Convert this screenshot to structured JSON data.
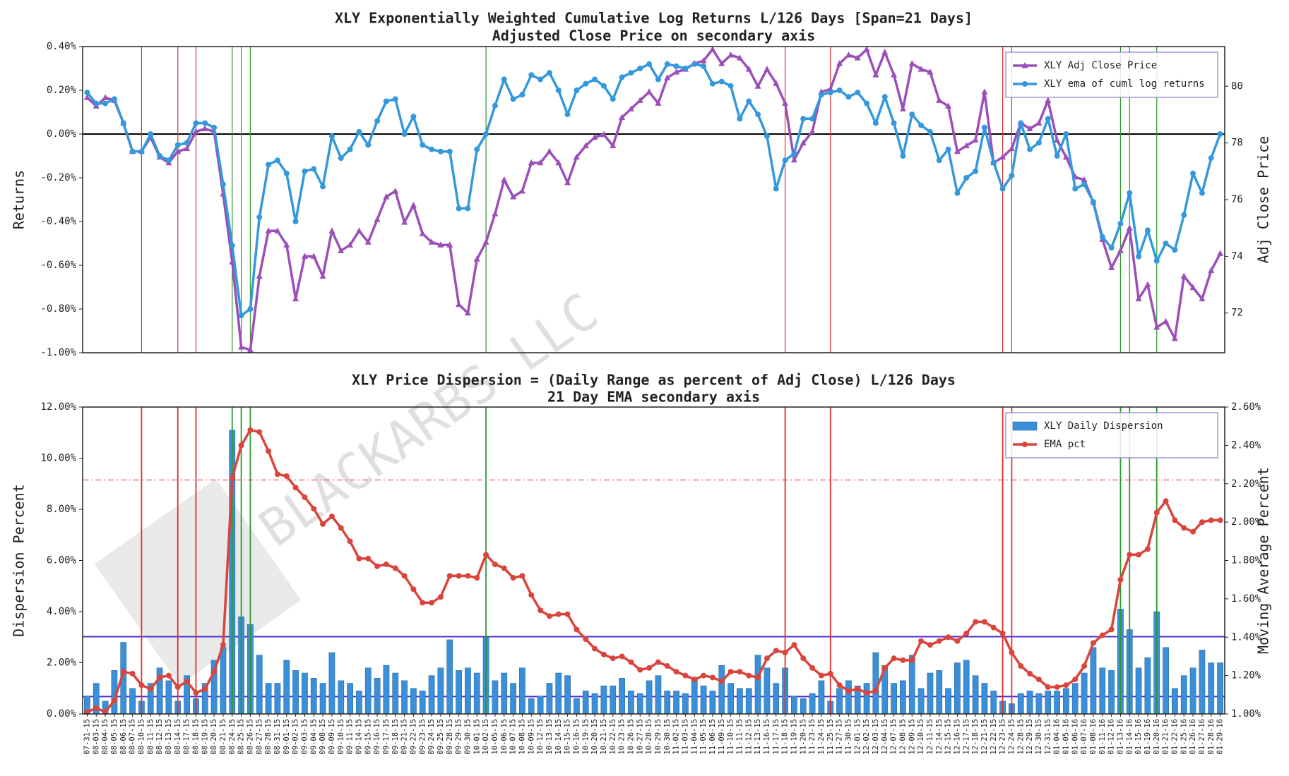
{
  "watermark": "BLACKARBS LLC",
  "chart_data": [
    {
      "type": "line",
      "title": "XLY Exponentially Weighted Cumulative Log Returns L/126 Days [Span=21 Days]",
      "subtitle": "Adjusted Close Price on secondary axis",
      "ylabel": "Returns",
      "y2label": "Adj Close Price",
      "ylim": [
        -1,
        0.4
      ],
      "yticks": [
        {
          "value": -1,
          "label": "-1.00%"
        },
        {
          "value": -0.8,
          "label": "-0.80%"
        },
        {
          "value": -0.6,
          "label": "-0.60%"
        },
        {
          "value": -0.4,
          "label": "-0.40%"
        },
        {
          "value": -0.2,
          "label": "-0.20%"
        },
        {
          "value": 0,
          "label": "0.00%"
        },
        {
          "value": 0.2,
          "label": "0.20%"
        },
        {
          "value": 0.4,
          "label": "0.40%"
        }
      ],
      "y2lim": [
        70.6,
        81.4
      ],
      "y2ticks": [
        72,
        74,
        76,
        78,
        80
      ],
      "legend": "upper right",
      "hlines": [
        {
          "value": 0,
          "color": "#000000"
        }
      ],
      "red_lines": [
        "08-10-15",
        "08-14-15",
        "08-18-15",
        "11-18-15",
        "11-25-15",
        "12-23-15",
        "12-24-15"
      ],
      "green_lines": [
        "08-24-15",
        "08-25-15",
        "08-26-15",
        "10-02-15",
        "01-13-16",
        "01-14-16",
        "01-20-16"
      ],
      "series": [
        {
          "name": "XLY Adj Close Price",
          "type": "line",
          "marker": "triangle",
          "axis": "y2",
          "color": "#9b4fb8",
          "values": [
            79.6,
            79.3,
            79.6,
            79.5,
            78.7,
            77.7,
            77.7,
            78.2,
            77.5,
            77.3,
            77.7,
            77.8,
            78.4,
            78.5,
            78.4,
            76.2,
            73.8,
            70.8,
            70.7,
            73.3,
            74.9,
            74.9,
            74.4,
            72.5,
            74.0,
            74.0,
            73.3,
            74.9,
            74.2,
            74.4,
            74.9,
            74.5,
            75.3,
            76.1,
            76.3,
            75.2,
            75.8,
            74.8,
            74.5,
            74.4,
            74.4,
            72.3,
            72.0,
            73.9,
            74.5,
            75.5,
            76.7,
            76.1,
            76.3,
            77.3,
            77.3,
            77.7,
            77.3,
            76.6,
            77.5,
            77.9,
            78.2,
            78.3,
            77.9,
            78.9,
            79.2,
            79.5,
            79.8,
            79.4,
            80.3,
            80.5,
            80.6,
            80.8,
            80.9,
            81.3,
            80.8,
            81.1,
            81.0,
            80.6,
            80.0,
            80.6,
            80.1,
            79.4,
            77.4,
            78.0,
            78.4,
            79.8,
            79.9,
            80.8,
            81.1,
            81.0,
            81.3,
            80.4,
            81.2,
            80.4,
            79.2,
            80.8,
            80.6,
            80.5,
            79.5,
            79.3,
            77.7,
            77.9,
            78.1,
            79.8,
            77.3,
            77.5,
            77.8,
            78.7,
            78.5,
            78.7,
            79.5,
            78.1,
            77.5,
            76.8,
            76.7,
            75.9,
            74.6,
            73.6,
            74.2,
            75.0,
            72.5,
            73.0,
            71.5,
            71.7,
            71.1,
            73.3,
            72.9,
            72.5,
            73.5,
            74.1
          ]
        },
        {
          "name": "XLY ema of cuml log returns",
          "type": "line",
          "marker": "circle",
          "axis": "y",
          "color": "#3498db",
          "values": [
            0.19,
            0.14,
            0.14,
            0.16,
            0.05,
            -0.08,
            -0.08,
            0.0,
            -0.1,
            -0.12,
            -0.05,
            -0.04,
            0.05,
            0.05,
            0.03,
            -0.23,
            -0.51,
            -0.83,
            -0.8,
            -0.38,
            -0.14,
            -0.12,
            -0.18,
            -0.4,
            -0.17,
            -0.16,
            -0.24,
            -0.01,
            -0.11,
            -0.07,
            0.01,
            -0.05,
            0.06,
            0.15,
            0.16,
            0.0,
            0.08,
            -0.05,
            -0.07,
            -0.08,
            -0.08,
            -0.34,
            -0.34,
            -0.07,
            0.0,
            0.13,
            0.25,
            0.16,
            0.18,
            0.27,
            0.25,
            0.28,
            0.2,
            0.09,
            0.2,
            0.23,
            0.25,
            0.22,
            0.16,
            0.26,
            0.28,
            0.3,
            0.32,
            0.25,
            0.32,
            0.31,
            0.3,
            0.32,
            0.31,
            0.23,
            0.24,
            0.22,
            0.07,
            0.15,
            0.09,
            -0.01,
            -0.25,
            -0.12,
            -0.09,
            0.07,
            0.07,
            0.18,
            0.19,
            0.2,
            0.17,
            0.19,
            0.14,
            0.05,
            0.17,
            0.05,
            -0.1,
            0.09,
            0.04,
            0.01,
            -0.12,
            -0.07,
            -0.27,
            -0.2,
            -0.17,
            0.03,
            -0.13,
            -0.25,
            -0.19,
            0.05,
            -0.07,
            -0.04,
            0.07,
            -0.1,
            0.0,
            -0.25,
            -0.23,
            -0.31,
            -0.47,
            -0.52,
            -0.41,
            -0.27,
            -0.56,
            -0.44,
            -0.58,
            -0.5,
            -0.53,
            -0.37,
            -0.18,
            -0.27,
            -0.11,
            0.0
          ]
        }
      ]
    },
    {
      "type": "bar",
      "title": "XLY Price Dispersion = (Daily Range as percent of Adj Close) L/126 Days",
      "subtitle": "21 Day EMA secondary axis",
      "ylabel": "Dispersion Percent",
      "y2label": "Moving Average Percent",
      "ylim": [
        0,
        12
      ],
      "yticks": [
        {
          "value": 0,
          "label": "0.00%"
        },
        {
          "value": 2,
          "label": "2.00%"
        },
        {
          "value": 4,
          "label": "4.00%"
        },
        {
          "value": 6,
          "label": "6.00%"
        },
        {
          "value": 8,
          "label": "8.00%"
        },
        {
          "value": 10,
          "label": "10.00%"
        },
        {
          "value": 12,
          "label": "12.00%"
        }
      ],
      "y2lim": [
        1,
        2.6
      ],
      "y2ticks": [
        {
          "value": 1,
          "label": "1.00%"
        },
        {
          "value": 1.2,
          "label": "1.20%"
        },
        {
          "value": 1.4,
          "label": "1.40%"
        },
        {
          "value": 1.6,
          "label": "1.60%"
        },
        {
          "value": 1.8,
          "label": "1.80%"
        },
        {
          "value": 2,
          "label": "2.00%"
        },
        {
          "value": 2.2,
          "label": "2.20%"
        },
        {
          "value": 2.4,
          "label": "2.40%"
        },
        {
          "value": 2.6,
          "label": "2.60%"
        }
      ],
      "legend": "upper right",
      "hlines": [
        {
          "value": 3.02,
          "color": "#4b2bd1"
        },
        {
          "value": 0.68,
          "color": "#4b2bd1"
        },
        {
          "value": 2.22,
          "color": "#e05050",
          "axis": "y2",
          "style": "dashdot"
        }
      ],
      "red_lines": [
        "08-10-15",
        "08-14-15",
        "08-18-15",
        "11-18-15",
        "11-25-15",
        "12-23-15",
        "12-24-15"
      ],
      "green_lines": [
        "08-24-15",
        "08-25-15",
        "08-26-15",
        "10-02-15",
        "01-13-16",
        "01-14-16",
        "01-20-16"
      ],
      "categories": [
        "07-31-15",
        "08-03-15",
        "08-04-15",
        "08-05-15",
        "08-06-15",
        "08-07-15",
        "08-10-15",
        "08-11-15",
        "08-12-15",
        "08-13-15",
        "08-14-15",
        "08-17-15",
        "08-18-15",
        "08-19-15",
        "08-20-15",
        "08-21-15",
        "08-24-15",
        "08-25-15",
        "08-26-15",
        "08-27-15",
        "08-28-15",
        "08-31-15",
        "09-01-15",
        "09-02-15",
        "09-03-15",
        "09-04-15",
        "09-08-15",
        "09-09-15",
        "09-10-15",
        "09-11-15",
        "09-14-15",
        "09-15-15",
        "09-16-15",
        "09-17-15",
        "09-18-15",
        "09-21-15",
        "09-22-15",
        "09-23-15",
        "09-24-15",
        "09-25-15",
        "09-28-15",
        "09-29-15",
        "09-30-15",
        "10-01-15",
        "10-02-15",
        "10-05-15",
        "10-06-15",
        "10-07-15",
        "10-08-15",
        "10-09-15",
        "10-12-15",
        "10-13-15",
        "10-14-15",
        "10-15-15",
        "10-16-15",
        "10-19-15",
        "10-20-15",
        "10-21-15",
        "10-22-15",
        "10-23-15",
        "10-26-15",
        "10-27-15",
        "10-28-15",
        "10-29-15",
        "10-30-15",
        "11-02-15",
        "11-03-15",
        "11-04-15",
        "11-05-15",
        "11-06-15",
        "11-09-15",
        "11-10-15",
        "11-11-15",
        "11-12-15",
        "11-13-15",
        "11-16-15",
        "11-17-15",
        "11-18-15",
        "11-19-15",
        "11-20-15",
        "11-23-15",
        "11-24-15",
        "11-25-15",
        "11-27-15",
        "11-30-15",
        "12-01-15",
        "12-02-15",
        "12-03-15",
        "12-04-15",
        "12-07-15",
        "12-08-15",
        "12-09-15",
        "12-10-15",
        "12-11-15",
        "12-14-15",
        "12-15-15",
        "12-16-15",
        "12-17-15",
        "12-18-15",
        "12-21-15",
        "12-22-15",
        "12-23-15",
        "12-24-15",
        "12-28-15",
        "12-29-15",
        "12-30-15",
        "12-31-15",
        "01-04-16",
        "01-05-16",
        "01-06-16",
        "01-07-16",
        "01-08-16",
        "01-11-16",
        "01-12-16",
        "01-13-16",
        "01-14-16",
        "01-15-16",
        "01-19-16",
        "01-20-16",
        "01-21-16",
        "01-22-16",
        "01-25-16",
        "01-26-16",
        "01-27-16",
        "01-28-16",
        "01-29-16"
      ],
      "series": [
        {
          "name": "XLY Daily Dispersion",
          "type": "bar",
          "axis": "y",
          "color": "#3a8fd8",
          "values": [
            0.7,
            1.2,
            0.5,
            1.7,
            2.8,
            1.0,
            0.5,
            1.2,
            1.8,
            1.3,
            0.5,
            1.5,
            0.6,
            1.2,
            2.1,
            2.6,
            11.1,
            3.8,
            3.5,
            2.3,
            1.2,
            1.2,
            2.1,
            1.7,
            1.6,
            1.4,
            1.2,
            2.4,
            1.3,
            1.2,
            0.9,
            1.8,
            1.4,
            1.9,
            1.6,
            1.3,
            1.0,
            0.9,
            1.5,
            1.8,
            2.9,
            1.7,
            1.8,
            1.6,
            3.0,
            1.3,
            1.6,
            1.2,
            1.8,
            0.6,
            0.7,
            1.2,
            1.6,
            1.5,
            0.6,
            0.9,
            0.8,
            1.1,
            1.1,
            1.4,
            0.9,
            0.8,
            1.3,
            1.5,
            0.9,
            0.9,
            0.8,
            1.4,
            1.1,
            0.9,
            1.9,
            1.2,
            1.0,
            1.0,
            2.3,
            1.8,
            1.2,
            1.8,
            0.7,
            0.6,
            0.8,
            1.3,
            0.5,
            1.0,
            1.3,
            1.1,
            1.2,
            2.4,
            1.9,
            1.2,
            1.3,
            2.3,
            1.0,
            1.6,
            1.7,
            1.0,
            2.0,
            2.1,
            1.5,
            1.2,
            0.9,
            0.5,
            0.4,
            0.8,
            0.9,
            0.8,
            0.9,
            0.9,
            1.0,
            1.2,
            1.6,
            2.6,
            1.8,
            1.7,
            4.1,
            3.3,
            1.8,
            2.2,
            4.0,
            2.6,
            1.0,
            1.5,
            1.8,
            2.5,
            2.0,
            2.0
          ]
        },
        {
          "name": "EMA pct",
          "type": "line",
          "marker": "circle",
          "axis": "y2",
          "color": "#d9453d",
          "values": [
            1.01,
            1.03,
            1.01,
            1.07,
            1.22,
            1.21,
            1.15,
            1.13,
            1.19,
            1.2,
            1.14,
            1.17,
            1.11,
            1.13,
            1.22,
            1.36,
            2.23,
            2.4,
            2.48,
            2.47,
            2.37,
            2.25,
            2.24,
            2.18,
            2.13,
            2.07,
            1.99,
            2.03,
            1.97,
            1.9,
            1.81,
            1.81,
            1.77,
            1.78,
            1.76,
            1.72,
            1.65,
            1.58,
            1.58,
            1.61,
            1.72,
            1.72,
            1.72,
            1.71,
            1.83,
            1.78,
            1.76,
            1.71,
            1.72,
            1.62,
            1.54,
            1.51,
            1.52,
            1.52,
            1.44,
            1.39,
            1.34,
            1.31,
            1.29,
            1.3,
            1.27,
            1.23,
            1.24,
            1.27,
            1.25,
            1.22,
            1.2,
            1.18,
            1.2,
            1.19,
            1.17,
            1.22,
            1.22,
            1.2,
            1.19,
            1.29,
            1.33,
            1.32,
            1.36,
            1.29,
            1.24,
            1.2,
            1.21,
            1.15,
            1.12,
            1.13,
            1.11,
            1.12,
            1.24,
            1.29,
            1.28,
            1.28,
            1.38,
            1.36,
            1.38,
            1.4,
            1.38,
            1.42,
            1.48,
            1.48,
            1.45,
            1.42,
            1.32,
            1.25,
            1.21,
            1.18,
            1.14,
            1.14,
            1.15,
            1.18,
            1.25,
            1.37,
            1.41,
            1.44,
            1.7,
            1.83,
            1.83,
            1.86,
            2.05,
            2.11,
            2.01,
            1.97,
            1.95,
            2.0,
            2.01,
            2.01
          ]
        }
      ]
    }
  ]
}
